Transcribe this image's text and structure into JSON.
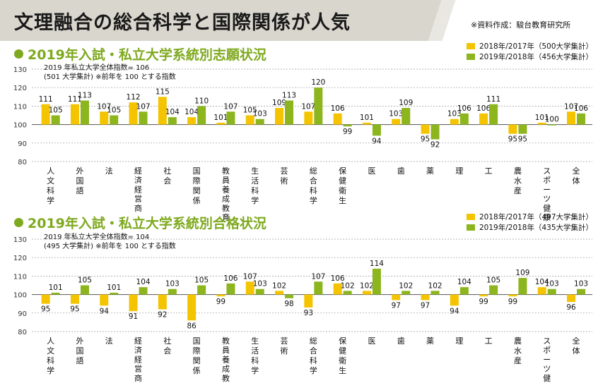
{
  "main_title": "文理融合の総合科学と国際関係が人気",
  "credit": "※資料作成：駿台教育研究所",
  "colors": {
    "y2017": "#f4c400",
    "y2018": "#8cb51e",
    "accent": "#7ea91f",
    "banner": "#d9d6ce"
  },
  "chart_data": [
    {
      "type": "bar",
      "title": "2019年入試・私立大学系統別志願状況",
      "note_line1": "2019 年私立大学全体指数= 106",
      "note_line2": "(501 大学集計) ※前年を 100 とする指数",
      "ylim": [
        80,
        130
      ],
      "yticks": [
        80,
        90,
        100,
        110,
        120,
        130
      ],
      "baseline": 100,
      "grid": true,
      "legend_position": "top-right",
      "categories": [
        "人文科学",
        "外国語",
        "法",
        "経済・経営・商",
        "社会",
        "国際関係",
        "教員養成・教育",
        "生活科学",
        "芸術",
        "総合科学",
        "保健衛生",
        "医",
        "歯",
        "薬",
        "理",
        "工",
        "農・水産",
        "スポーツ・健康",
        "全体"
      ],
      "category_lines": [
        [
          "人",
          "文",
          "科",
          "学"
        ],
        [
          "外",
          "国",
          "語"
        ],
        [
          "法"
        ],
        [
          "経",
          "済",
          "経",
          "営",
          "商"
        ],
        [
          "社",
          "会"
        ],
        [
          "国",
          "際",
          "関",
          "係"
        ],
        [
          "教",
          "員",
          "養",
          "成",
          "教",
          "育"
        ],
        [
          "生",
          "活",
          "科",
          "学"
        ],
        [
          "芸",
          "術"
        ],
        [
          "総",
          "合",
          "科",
          "学"
        ],
        [
          "保",
          "健",
          "衛",
          "生"
        ],
        [
          "医"
        ],
        [
          "歯"
        ],
        [
          "薬"
        ],
        [
          "理"
        ],
        [
          "工"
        ],
        [
          "農",
          "水",
          "産"
        ],
        [
          "ス",
          "ポ",
          "ー",
          "ツ",
          "健",
          "康"
        ],
        [
          "全",
          "体"
        ]
      ],
      "series": [
        {
          "name": "2018年/2017年（500大学集計）",
          "values": [
            111,
            111,
            107,
            112,
            115,
            104,
            101,
            105,
            109,
            107,
            106,
            101,
            103,
            95,
            103,
            106,
            95,
            101,
            107
          ]
        },
        {
          "name": "2019年/2018年（456大学集計）",
          "values": [
            105,
            113,
            105,
            107,
            104,
            110,
            107,
            103,
            113,
            120,
            99,
            94,
            109,
            92,
            106,
            111,
            95,
            100,
            106
          ]
        }
      ]
    },
    {
      "type": "bar",
      "title": "2019年入試・私立大学系統別合格状況",
      "note_line1": "2019 年私立大学全体指数= 104",
      "note_line2": "(495 大学集計) ※前年を 100 とする指数",
      "ylim": [
        80,
        130
      ],
      "yticks": [
        80,
        90,
        100,
        110,
        120,
        130
      ],
      "baseline": 100,
      "grid": true,
      "legend_position": "top-right",
      "categories": [
        "人文科学",
        "外国語",
        "法",
        "経済・経営・商",
        "社会",
        "国際関係",
        "教員養成・教育",
        "生活科学",
        "芸術",
        "総合科学",
        "保健衛生",
        "医",
        "歯",
        "薬",
        "理",
        "工",
        "農・水産",
        "スポーツ・健康",
        "全体"
      ],
      "category_lines": [
        [
          "人",
          "文",
          "科",
          "学"
        ],
        [
          "外",
          "国",
          "語"
        ],
        [
          "法"
        ],
        [
          "経",
          "済",
          "経",
          "営",
          "商"
        ],
        [
          "社",
          "会"
        ],
        [
          "国",
          "際",
          "関",
          "係"
        ],
        [
          "教",
          "員",
          "養",
          "成",
          "教",
          "育"
        ],
        [
          "生",
          "活",
          "科",
          "学"
        ],
        [
          "芸",
          "術"
        ],
        [
          "総",
          "合",
          "科",
          "学"
        ],
        [
          "保",
          "健",
          "衛",
          "生"
        ],
        [
          "医"
        ],
        [
          "歯"
        ],
        [
          "薬"
        ],
        [
          "理"
        ],
        [
          "工"
        ],
        [
          "農",
          "水",
          "産"
        ],
        [
          "ス",
          "ポ",
          "ー",
          "ツ",
          "健",
          "康"
        ],
        [
          "全",
          "体"
        ]
      ],
      "series": [
        {
          "name": "2018年/2017年（497大学集計）",
          "values": [
            95,
            95,
            94,
            91,
            92,
            86,
            99,
            107,
            102,
            93,
            106,
            102,
            97,
            97,
            94,
            99,
            99,
            104,
            96
          ]
        },
        {
          "name": "2019年/2018年（435大学集計）",
          "values": [
            101,
            105,
            101,
            104,
            103,
            105,
            106,
            103,
            98,
            107,
            102,
            114,
            102,
            102,
            104,
            105,
            109,
            103,
            103
          ]
        }
      ]
    }
  ]
}
